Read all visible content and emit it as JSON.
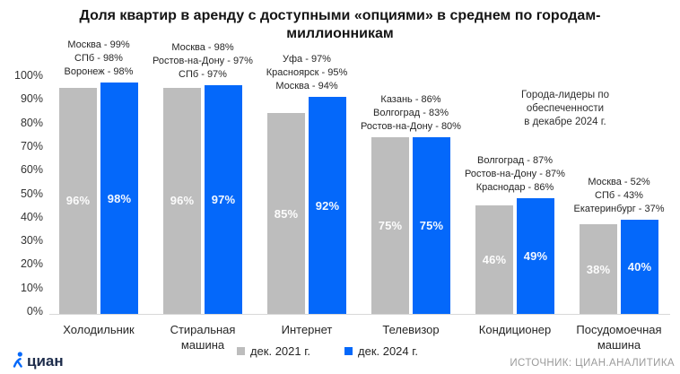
{
  "title": "Доля квартир в аренду с доступными «опциями» в среднем по городам-миллионникам",
  "note_lines": [
    "Города-лидеры по",
    "обеспеченности",
    "в декабре 2024 г."
  ],
  "source": "ИСТОЧНИК: ЦИАН.АНАЛИТИКА",
  "logo_text": "циан",
  "colors": {
    "bar_2021": "#bdbdbd",
    "bar_2024": "#0468fa",
    "logo_blue": "#0468fa",
    "logo_text": "#1c2b4a"
  },
  "legend": [
    {
      "label": "дек. 2021 г.",
      "color": "#bdbdbd"
    },
    {
      "label": "дек. 2024 г.",
      "color": "#0468fa"
    }
  ],
  "chart_data": {
    "type": "bar",
    "title": "Доля квартир в аренду с доступными «опциями» в среднем по городам-миллионникам",
    "categories": [
      "Холодильник",
      "Стиральная машина",
      "Интернет",
      "Телевизор",
      "Кондиционер",
      "Посудомоечная машина"
    ],
    "series": [
      {
        "name": "дек. 2021 г.",
        "values": [
          96,
          96,
          85,
          75,
          46,
          38
        ]
      },
      {
        "name": "дек. 2024 г.",
        "values": [
          98,
          97,
          92,
          75,
          49,
          40
        ]
      }
    ],
    "ylim": [
      0,
      100
    ],
    "ytick_step": 10,
    "ytick_suffix": "%",
    "grid": false,
    "legend_position": "bottom",
    "annotations": [
      [
        "Москва - 99%",
        "СПб - 98%",
        "Воронеж - 98%"
      ],
      [
        "Москва - 98%",
        "Ростов-на-Дону - 97%",
        "СПб - 97%"
      ],
      [
        "Уфа - 97%",
        "Красноярск - 95%",
        "Москва - 94%"
      ],
      [
        "Казань - 86%",
        "Волгоград - 83%",
        "Ростов-на-Дону - 80%"
      ],
      [
        "Волгоград - 87%",
        "Ростов-на-Дону - 87%",
        "Краснодар - 86%"
      ],
      [
        "Москва - 52%",
        "СПб - 43%",
        "Екатеринбург - 37%"
      ]
    ]
  }
}
